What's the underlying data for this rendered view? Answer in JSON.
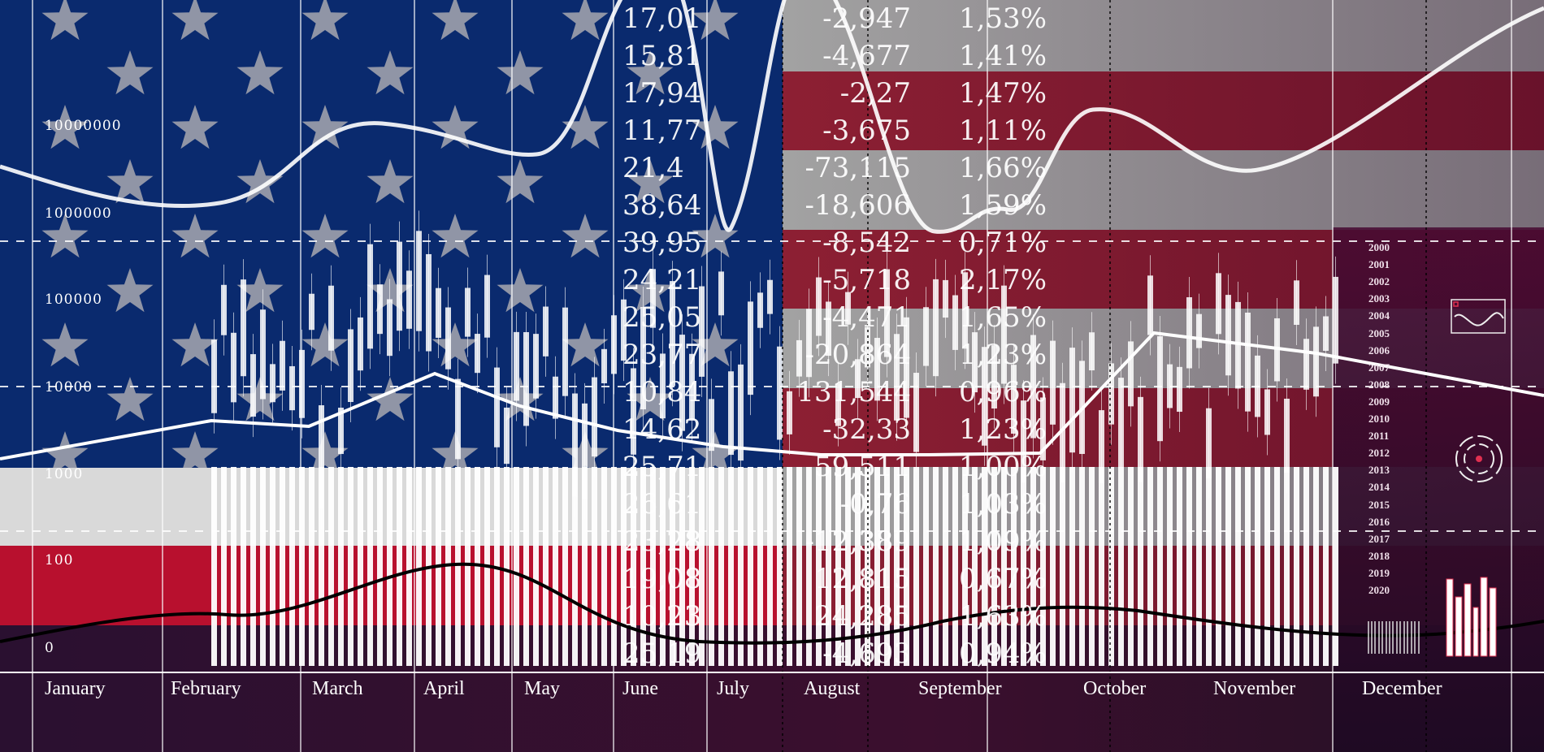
{
  "colors": {
    "flag_red": "#b8102e",
    "flag_blue": "#0a2a6e",
    "flag_white": "#d9d9d9",
    "overlay": "#ffffff",
    "dark": "#2a1030"
  },
  "y_axis_labels": [
    "10000000",
    "1000000",
    "100000",
    "10000",
    "1000",
    "100",
    "0"
  ],
  "months": [
    "January",
    "February",
    "March",
    "April",
    "May",
    "June",
    "July",
    "August",
    "September",
    "October",
    "November",
    "December"
  ],
  "table": {
    "col1": [
      "17,01",
      "15,81",
      "17,94",
      "11,77",
      "21,4",
      "38,64",
      "39,95",
      "24,21",
      "25,05",
      "23,77",
      "10,84",
      "14,62",
      "25,71",
      "26,61",
      "23,28",
      "19,08",
      "10,23",
      "25,19"
    ],
    "col2": [
      "-2,947",
      "-4,677",
      "-2,27",
      "-3,675",
      "-73,115",
      "-18,606",
      "-8,542",
      "-5,718",
      "-4,471",
      "-20,864",
      "131,544",
      "-32,33",
      "59,511",
      "-0,76",
      "-12,389",
      "12,815",
      "24,285",
      "-4,693"
    ],
    "col3": [
      "1,53%",
      "1,41%",
      "1,47%",
      "1,11%",
      "1,66%",
      "1,59%",
      "0,71%",
      "2,17%",
      "1,65%",
      "1,23%",
      "0,96%",
      "1,23%",
      "1,00%",
      "1,03%",
      "1,09%",
      "0,67%",
      "1,63%",
      "0,94%"
    ]
  },
  "years": [
    "2000",
    "2001",
    "2002",
    "2003",
    "2004",
    "2005",
    "2006",
    "2007",
    "2008",
    "2009",
    "2010",
    "2011",
    "2012",
    "2013",
    "2014",
    "2015",
    "2016",
    "2017",
    "2018",
    "2019",
    "2020"
  ],
  "icons": [
    "wave-chart-icon",
    "radar-dial-icon",
    "mini-bar-chart-icon",
    "barcode-icon"
  ]
}
